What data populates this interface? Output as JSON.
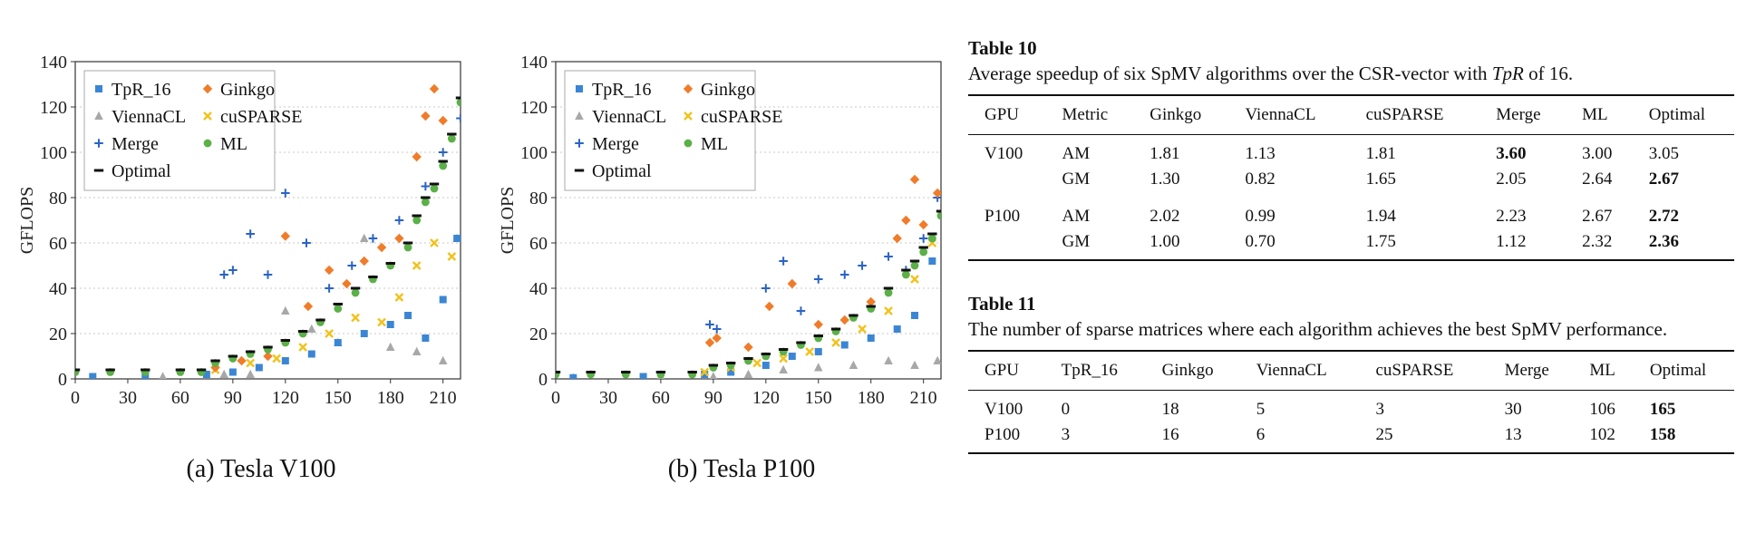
{
  "chart_data": [
    {
      "type": "scatter",
      "title": "",
      "caption": "(a) Tesla V100",
      "xlabel": "",
      "ylabel": "GFLOPS",
      "xlim": [
        0,
        220
      ],
      "ylim": [
        0,
        140
      ],
      "xticks": [
        0,
        30,
        60,
        90,
        120,
        150,
        180,
        210
      ],
      "yticks": [
        0,
        20,
        40,
        60,
        80,
        100,
        120,
        140
      ],
      "grid": "horizontal dotted",
      "legend": "top-left",
      "legend_entries": [
        "TpR_16",
        "Ginkgo",
        "ViennaCL",
        "cuSPARSE",
        "Merge",
        "ML",
        "Optimal"
      ],
      "colors": {
        "TpR_16": "#3b86d4",
        "Ginkgo": "#f07c2a",
        "ViennaCL": "#a8a8a8",
        "cuSPARSE": "#f2c21c",
        "Merge": "#2a63c6",
        "ML": "#5bb048",
        "Optimal": "#111111"
      },
      "series": [
        {
          "name": "Optimal",
          "x": [
            0,
            20,
            40,
            60,
            72,
            80,
            90,
            100,
            110,
            120,
            130,
            140,
            150,
            160,
            170,
            180,
            190,
            195,
            200,
            205,
            210,
            215,
            220
          ],
          "y": [
            4,
            4,
            4,
            4,
            4,
            8,
            10,
            12,
            14,
            17,
            21,
            26,
            33,
            40,
            45,
            51,
            60,
            72,
            80,
            86,
            96,
            108,
            124
          ]
        },
        {
          "name": "ML",
          "x": [
            0,
            20,
            40,
            60,
            72,
            80,
            90,
            100,
            110,
            120,
            130,
            140,
            150,
            160,
            170,
            180,
            190,
            195,
            200,
            205,
            210,
            215,
            220
          ],
          "y": [
            3,
            3,
            3,
            3,
            3,
            7,
            9,
            11,
            13,
            16,
            20,
            25,
            31,
            38,
            44,
            50,
            58,
            70,
            78,
            84,
            94,
            106,
            122
          ]
        },
        {
          "name": "TpR_16",
          "x": [
            10,
            40,
            75,
            90,
            105,
            120,
            135,
            150,
            165,
            180,
            190,
            200,
            210,
            218
          ],
          "y": [
            1,
            1,
            2,
            3,
            5,
            8,
            11,
            16,
            20,
            24,
            28,
            18,
            35,
            62
          ]
        },
        {
          "name": "Ginkgo",
          "x": [
            80,
            95,
            110,
            120,
            133,
            145,
            155,
            165,
            175,
            185,
            195,
            200,
            205,
            210
          ],
          "y": [
            5,
            8,
            10,
            63,
            32,
            48,
            42,
            52,
            58,
            62,
            98,
            116,
            128,
            114
          ]
        },
        {
          "name": "ViennaCL",
          "x": [
            10,
            50,
            85,
            100,
            120,
            135,
            150,
            165,
            180,
            195,
            210,
            218
          ],
          "y": [
            0.5,
            1,
            2,
            2,
            30,
            22,
            16,
            62,
            14,
            12,
            8,
            62
          ]
        },
        {
          "name": "cuSPARSE",
          "x": [
            80,
            100,
            115,
            130,
            145,
            160,
            175,
            185,
            195,
            205,
            215
          ],
          "y": [
            4,
            7,
            9,
            14,
            20,
            27,
            25,
            36,
            50,
            60,
            54
          ]
        },
        {
          "name": "Merge",
          "x": [
            85,
            90,
            100,
            110,
            120,
            132,
            145,
            158,
            170,
            185,
            200,
            210,
            220
          ],
          "y": [
            46,
            48,
            64,
            46,
            82,
            60,
            40,
            50,
            62,
            70,
            85,
            100,
            115
          ]
        }
      ]
    },
    {
      "type": "scatter",
      "title": "",
      "caption": "(b) Tesla P100",
      "xlabel": "",
      "ylabel": "GFLOPS",
      "xlim": [
        0,
        220
      ],
      "ylim": [
        0,
        140
      ],
      "xticks": [
        0,
        30,
        60,
        90,
        120,
        150,
        180,
        210
      ],
      "yticks": [
        0,
        20,
        40,
        60,
        80,
        100,
        120,
        140
      ],
      "grid": "horizontal dotted",
      "legend": "top-left",
      "legend_entries": [
        "TpR_16",
        "Ginkgo",
        "ViennaCL",
        "cuSPARSE",
        "Merge",
        "ML",
        "Optimal"
      ],
      "colors": {
        "TpR_16": "#3b86d4",
        "Ginkgo": "#f07c2a",
        "ViennaCL": "#a8a8a8",
        "cuSPARSE": "#f2c21c",
        "Merge": "#2a63c6",
        "ML": "#5bb048",
        "Optimal": "#111111"
      },
      "series": [
        {
          "name": "Optimal",
          "x": [
            0,
            20,
            40,
            60,
            78,
            90,
            100,
            110,
            120,
            130,
            140,
            150,
            160,
            170,
            180,
            190,
            200,
            205,
            210,
            215,
            220
          ],
          "y": [
            3,
            3,
            3,
            3,
            3,
            6,
            7,
            9,
            11,
            13,
            16,
            19,
            22,
            28,
            32,
            40,
            48,
            52,
            58,
            64,
            74
          ]
        },
        {
          "name": "ML",
          "x": [
            0,
            20,
            40,
            60,
            78,
            90,
            100,
            110,
            120,
            130,
            140,
            150,
            160,
            170,
            180,
            190,
            200,
            205,
            210,
            215,
            220
          ],
          "y": [
            2,
            2,
            2,
            2,
            2,
            5,
            6,
            8,
            10,
            12,
            15,
            18,
            21,
            27,
            31,
            38,
            46,
            50,
            56,
            62,
            72
          ]
        },
        {
          "name": "TpR_16",
          "x": [
            10,
            50,
            85,
            100,
            120,
            135,
            150,
            165,
            180,
            195,
            205,
            215
          ],
          "y": [
            0.5,
            1,
            2,
            3,
            6,
            10,
            12,
            15,
            18,
            22,
            28,
            52
          ]
        },
        {
          "name": "Ginkgo",
          "x": [
            88,
            92,
            110,
            122,
            135,
            150,
            165,
            180,
            195,
            200,
            205,
            210,
            218
          ],
          "y": [
            16,
            18,
            14,
            32,
            42,
            24,
            26,
            34,
            62,
            70,
            88,
            68,
            82
          ]
        },
        {
          "name": "ViennaCL",
          "x": [
            10,
            60,
            90,
            110,
            130,
            150,
            170,
            190,
            205,
            218
          ],
          "y": [
            0.5,
            1,
            1,
            2,
            4,
            5,
            6,
            8,
            6,
            8
          ]
        },
        {
          "name": "cuSPARSE",
          "x": [
            85,
            100,
            115,
            130,
            145,
            160,
            175,
            190,
            205,
            215
          ],
          "y": [
            3,
            5,
            7,
            9,
            12,
            16,
            22,
            30,
            44,
            60
          ]
        },
        {
          "name": "Merge",
          "x": [
            88,
            92,
            120,
            130,
            140,
            150,
            165,
            175,
            190,
            200,
            210,
            218
          ],
          "y": [
            24,
            22,
            40,
            52,
            30,
            44,
            46,
            50,
            54,
            48,
            62,
            80
          ]
        }
      ]
    }
  ],
  "table10": {
    "title": "Table 10",
    "desc_pre": "Average speedup of six SpMV algorithms over the CSR-vector with ",
    "desc_var": "TpR",
    "desc_post": " of 16.",
    "columns": [
      "GPU",
      "Metric",
      "Ginkgo",
      "ViennaCL",
      "cuSPARSE",
      "Merge",
      "ML",
      "Optimal"
    ],
    "rows": [
      [
        "V100",
        "AM",
        "1.81",
        "1.13",
        "1.81",
        "3.60",
        "3.00",
        "3.05"
      ],
      [
        "",
        "GM",
        "1.30",
        "0.82",
        "1.65",
        "2.05",
        "2.64",
        "2.67"
      ],
      [
        "P100",
        "AM",
        "2.02",
        "0.99",
        "1.94",
        "2.23",
        "2.67",
        "2.72"
      ],
      [
        "",
        "GM",
        "1.00",
        "0.70",
        "1.75",
        "1.12",
        "2.32",
        "2.36"
      ]
    ],
    "bold": [
      [
        0,
        5
      ],
      [
        1,
        7
      ],
      [
        2,
        7
      ],
      [
        3,
        7
      ]
    ]
  },
  "table11": {
    "title": "Table 11",
    "desc": "The number of sparse matrices where each algorithm achieves the best SpMV performance.",
    "columns": [
      "GPU",
      "TpR_16",
      "Ginkgo",
      "ViennaCL",
      "cuSPARSE",
      "Merge",
      "ML",
      "Optimal"
    ],
    "rows": [
      [
        "V100",
        "0",
        "18",
        "5",
        "3",
        "30",
        "106",
        "165"
      ],
      [
        "P100",
        "3",
        "16",
        "6",
        "25",
        "13",
        "102",
        "158"
      ]
    ],
    "bold": [
      [
        0,
        7
      ],
      [
        1,
        7
      ]
    ]
  }
}
